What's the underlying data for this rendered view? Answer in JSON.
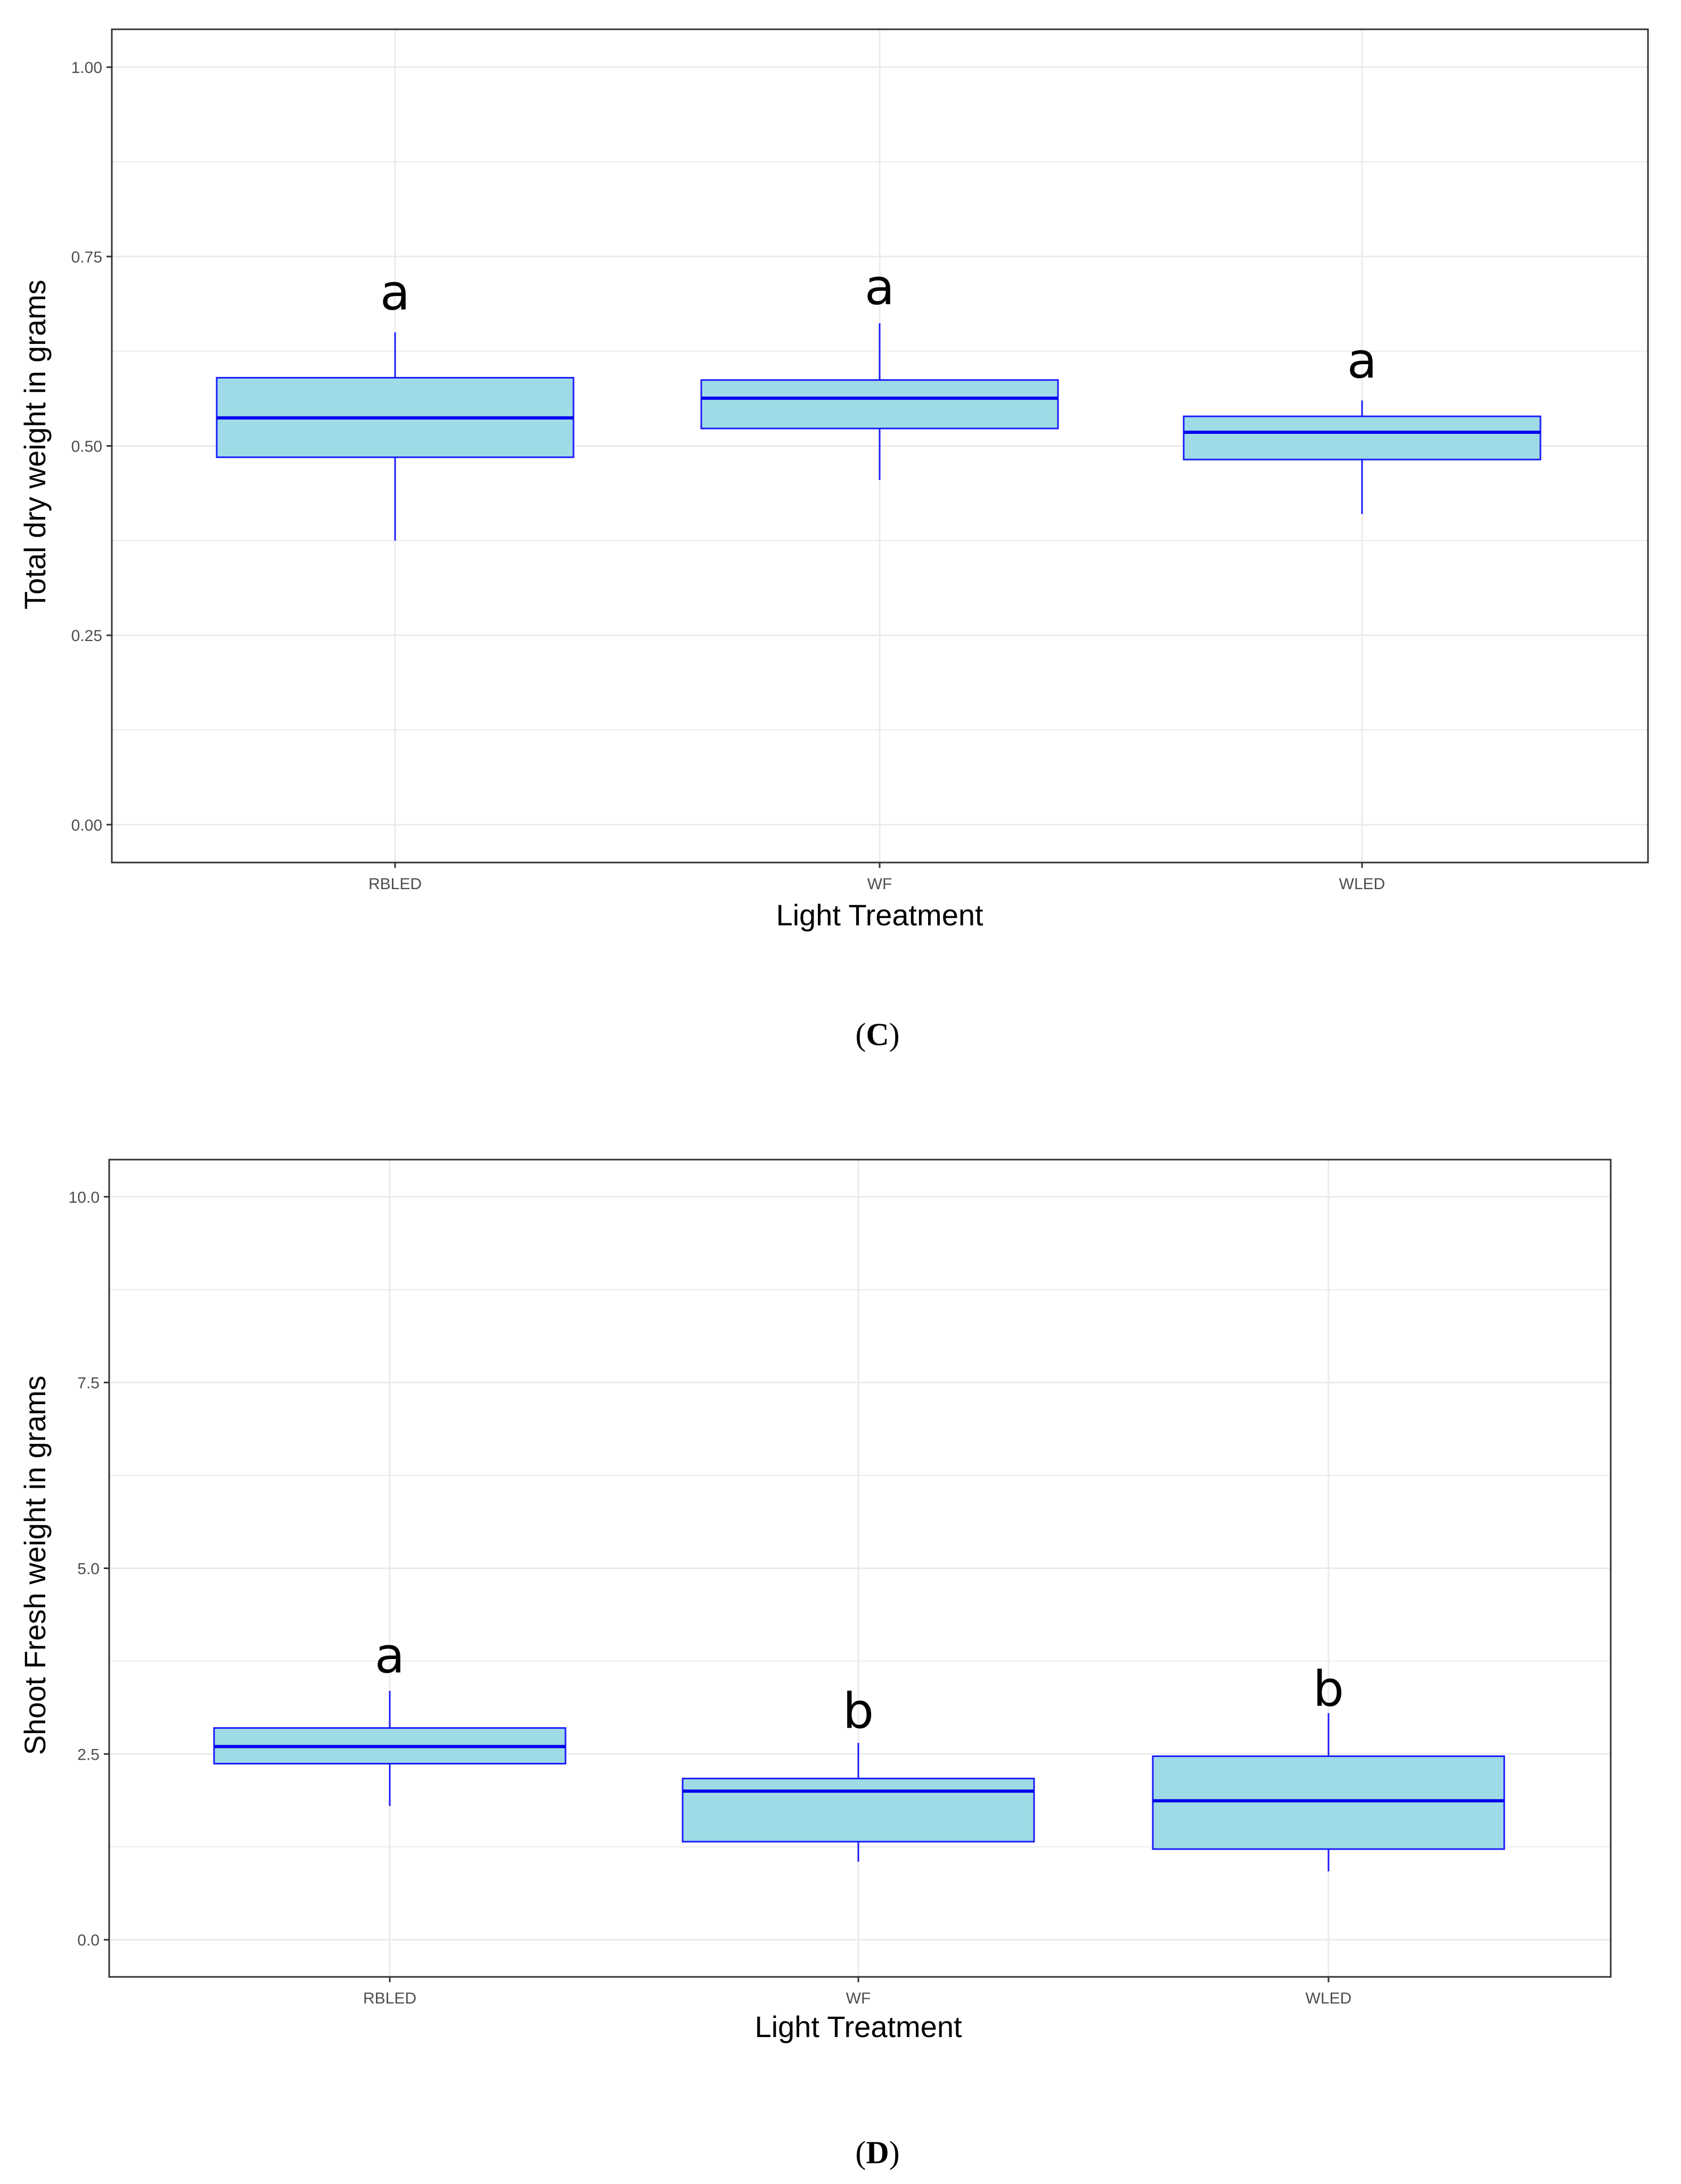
{
  "figure": {
    "colors": {
      "box_fill": "#9edbe6",
      "box_stroke": "#1a1aff",
      "median": "#0000ee",
      "whisker": "#1a1aff",
      "grid": "#ebebeb",
      "panel_border": "#333333"
    }
  },
  "chart_data": [
    {
      "type": "box",
      "panel": "C",
      "caption_open": "(",
      "caption_letter": "C",
      "caption_close": ")",
      "xlabel": "Light Treatment",
      "ylabel": "Total dry weight in grams",
      "ylim": [
        -0.05,
        1.05
      ],
      "y_ticks": [
        0.0,
        0.25,
        0.5,
        0.75,
        1.0
      ],
      "y_tick_labels": [
        "0.00",
        "0.25",
        "0.50",
        "0.75",
        "1.00"
      ],
      "y_minor_ticks": [
        0.125,
        0.375,
        0.625,
        0.875
      ],
      "categories": [
        "RBLED",
        "WF",
        "WLED"
      ],
      "boxes": [
        {
          "category": "RBLED",
          "whisker_low": 0.375,
          "q1": 0.485,
          "median": 0.537,
          "q3": 0.59,
          "whisker_high": 0.65,
          "label": "a",
          "label_y": 0.7
        },
        {
          "category": "WF",
          "whisker_low": 0.455,
          "q1": 0.523,
          "median": 0.563,
          "q3": 0.587,
          "whisker_high": 0.662,
          "label": "a",
          "label_y": 0.707
        },
        {
          "category": "WLED",
          "whisker_low": 0.41,
          "q1": 0.482,
          "median": 0.518,
          "q3": 0.539,
          "whisker_high": 0.56,
          "label": "a",
          "label_y": 0.61
        }
      ]
    },
    {
      "type": "box",
      "panel": "D",
      "caption_open": "(",
      "caption_letter": "D",
      "caption_close": ")",
      "xlabel": "Light Treatment",
      "ylabel": "Shoot Fresh weight  in grams",
      "ylim": [
        -0.5,
        10.5
      ],
      "y_ticks": [
        0.0,
        2.5,
        5.0,
        7.5,
        10.0
      ],
      "y_tick_labels": [
        "0.0",
        "2.5",
        "5.0",
        "7.5",
        "10.0"
      ],
      "y_minor_ticks": [
        1.25,
        3.75,
        6.25,
        8.75
      ],
      "categories": [
        "RBLED",
        "WF",
        "WLED"
      ],
      "boxes": [
        {
          "category": "RBLED",
          "whisker_low": 1.8,
          "q1": 2.37,
          "median": 2.6,
          "q3": 2.85,
          "whisker_high": 3.35,
          "label": "a",
          "label_y": 3.8
        },
        {
          "category": "WF",
          "whisker_low": 1.05,
          "q1": 1.32,
          "median": 2.0,
          "q3": 2.17,
          "whisker_high": 2.65,
          "label": "b",
          "label_y": 3.05
        },
        {
          "category": "WLED",
          "whisker_low": 0.92,
          "q1": 1.22,
          "median": 1.87,
          "q3": 2.47,
          "whisker_high": 3.05,
          "label": "b",
          "label_y": 3.35
        }
      ]
    }
  ]
}
